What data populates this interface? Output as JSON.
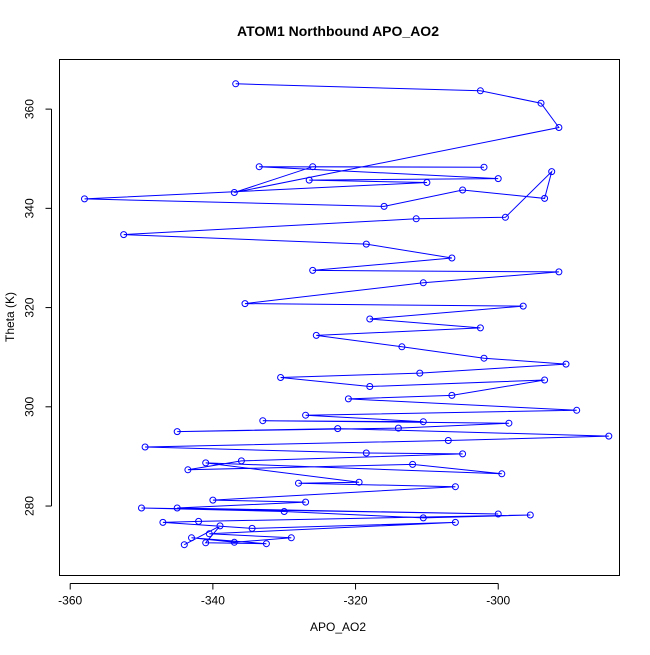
{
  "chart_data": {
    "type": "line",
    "title": "ATOM1 Northbound APO_AO2",
    "xlabel": "APO_AO2",
    "ylabel": "Theta (K)",
    "xlim": [
      -361.5,
      -283.0
    ],
    "ylim": [
      266.0,
      370.0
    ],
    "xticks": [
      -360,
      -340,
      -320,
      -300
    ],
    "yticks": [
      280,
      300,
      320,
      340,
      360
    ],
    "grid": false,
    "series_color": "#0000ff",
    "marker": "open-circle",
    "series": [
      {
        "name": "",
        "points": [
          [
            -336.8,
            365.1
          ],
          [
            -302.5,
            363.7
          ],
          [
            -294.0,
            361.2
          ],
          [
            -291.5,
            356.3
          ],
          [
            -337.0,
            343.2
          ],
          [
            -326.0,
            348.4
          ],
          [
            -302.0,
            348.3
          ],
          [
            -333.5,
            348.4
          ],
          [
            -300.0,
            346.0
          ],
          [
            -326.5,
            345.7
          ],
          [
            -310.0,
            345.2
          ],
          [
            -358.0,
            341.9
          ],
          [
            -316.0,
            340.4
          ],
          [
            -305.0,
            343.7
          ],
          [
            -293.5,
            342.0
          ],
          [
            -292.5,
            347.4
          ],
          [
            -299.0,
            338.2
          ],
          [
            -311.5,
            337.9
          ],
          [
            -352.5,
            334.7
          ],
          [
            -318.5,
            332.8
          ],
          [
            -306.5,
            330.0
          ],
          [
            -326.0,
            327.5
          ],
          [
            -291.5,
            327.2
          ],
          [
            -310.5,
            325.0
          ],
          [
            -335.5,
            320.8
          ],
          [
            -296.5,
            320.3
          ],
          [
            -318.0,
            317.7
          ],
          [
            -302.5,
            315.9
          ],
          [
            -325.5,
            314.4
          ],
          [
            -313.5,
            312.1
          ],
          [
            -302.0,
            309.8
          ],
          [
            -290.5,
            308.6
          ],
          [
            -311.0,
            306.8
          ],
          [
            -330.5,
            305.9
          ],
          [
            -318.0,
            304.1
          ],
          [
            -293.5,
            305.4
          ],
          [
            -306.5,
            302.3
          ],
          [
            -321.0,
            301.6
          ],
          [
            -289.0,
            299.3
          ],
          [
            -327.0,
            298.3
          ],
          [
            -310.5,
            297.0
          ],
          [
            -333.0,
            297.2
          ],
          [
            -298.5,
            296.7
          ],
          [
            -314.0,
            295.7
          ],
          [
            -345.0,
            295.0
          ],
          [
            -322.5,
            295.6
          ],
          [
            -284.5,
            294.1
          ],
          [
            -307.0,
            293.2
          ],
          [
            -349.5,
            291.9
          ],
          [
            -318.5,
            290.7
          ],
          [
            -305.0,
            290.5
          ],
          [
            -336.0,
            289.1
          ],
          [
            -343.5,
            287.3
          ],
          [
            -312.0,
            288.4
          ],
          [
            -299.5,
            286.5
          ],
          [
            -341.0,
            288.7
          ],
          [
            -319.5,
            284.8
          ],
          [
            -328.0,
            284.6
          ],
          [
            -306.0,
            283.9
          ],
          [
            -340.0,
            281.2
          ],
          [
            -327.0,
            280.8
          ],
          [
            -345.0,
            279.6
          ],
          [
            -300.0,
            278.4
          ],
          [
            -350.0,
            279.6
          ],
          [
            -330.0,
            278.9
          ],
          [
            -310.5,
            277.6
          ],
          [
            -295.5,
            278.2
          ],
          [
            -342.0,
            276.9
          ],
          [
            -347.0,
            276.7
          ],
          [
            -334.5,
            275.5
          ],
          [
            -306.0,
            276.7
          ],
          [
            -340.5,
            274.4
          ],
          [
            -329.0,
            273.6
          ],
          [
            -337.0,
            272.7
          ],
          [
            -343.0,
            273.6
          ],
          [
            -332.5,
            272.4
          ],
          [
            -341.0,
            272.6
          ],
          [
            -339.0,
            276.0
          ],
          [
            -344.0,
            272.2
          ]
        ]
      }
    ]
  }
}
